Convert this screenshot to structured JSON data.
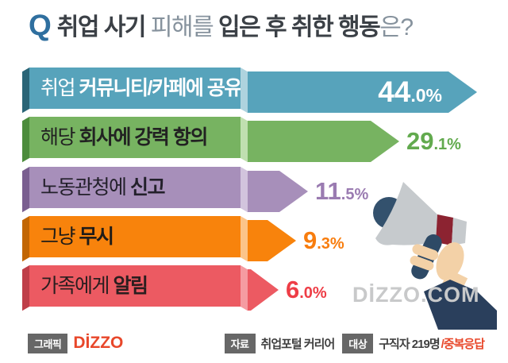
{
  "title": {
    "q": "Q",
    "seg1": "취업 사기",
    "seg2": " 피해를 ",
    "seg3": "입은 후 취한 행동",
    "seg4": "은?"
  },
  "chart_data": {
    "type": "bar",
    "orientation": "horizontal",
    "title": "취업 사기 피해를 입은 후 취한 행동은?",
    "categories": [
      "취업 커뮤니티/카페에 공유",
      "해당 회사에 강력 항의",
      "노동관청에 신고",
      "그냥 무시",
      "가족에게 알림"
    ],
    "values": [
      44.0,
      29.1,
      11.5,
      9.3,
      6.0
    ],
    "value_labels": [
      "44.0%",
      "29.1%",
      "11.5%",
      "9.3%",
      "6.0%"
    ],
    "unit": "%",
    "xlim": [
      0,
      47
    ],
    "grid": false,
    "legend": "none",
    "bar_colors": [
      "#57a3bb",
      "#77b361",
      "#a78fba",
      "#f8830c",
      "#ec5a62"
    ],
    "source": "취업포털 커리어",
    "sample": "구직자 219명",
    "note": "중복응답"
  },
  "bars": [
    {
      "label_normal": "취업 ",
      "label_bold": "커뮤니티/카페에 공유",
      "value": 44.0,
      "value_int": "44",
      "value_dec": ".0%",
      "inside": true,
      "colors": {
        "main": "#57a3bb",
        "dark": "#2a6577",
        "light": "#aed3de",
        "label_text": "#ffffff",
        "pct_text": "#ffffff"
      }
    },
    {
      "label_normal": "해당 ",
      "label_bold": "회사에 강력 항의",
      "value": 29.1,
      "value_int": "29",
      "value_dec": ".1%",
      "inside": false,
      "colors": {
        "main": "#77b361",
        "dark": "#4c8c3c",
        "light": "#c0dfb0",
        "label_text": "#222222",
        "pct_text": "#62aa4e"
      }
    },
    {
      "label_normal": "노동관청에 ",
      "label_bold": "신고",
      "value": 11.5,
      "value_int": "11",
      "value_dec": ".5%",
      "inside": false,
      "colors": {
        "main": "#a78fba",
        "dark": "#7a5f90",
        "light": "#d2c4dd",
        "label_text": "#23202b",
        "pct_text": "#9a7bb1"
      }
    },
    {
      "label_normal": "그냥 ",
      "label_bold": "무시",
      "value": 9.3,
      "value_int": "9",
      "value_dec": ".3%",
      "inside": false,
      "colors": {
        "main": "#f8830c",
        "dark": "#c26604",
        "light": "#fcc489",
        "label_text": "#201c18",
        "pct_text": "#f87d0e"
      }
    },
    {
      "label_normal": "가족에게 ",
      "label_bold": "알림",
      "value": 6.0,
      "value_int": "6",
      "value_dec": ".0%",
      "inside": false,
      "colors": {
        "main": "#ec5a62",
        "dark": "#bf3f49",
        "light": "#f59ba1",
        "label_text": "#2a1e1f",
        "pct_text": "#ee3d46"
      }
    }
  ],
  "illustration": {
    "name": "hand-holding-megaphone",
    "colors": {
      "cone": "#c6cacd",
      "circle": "#33516d",
      "band": "#8c2331",
      "handle": "#2e4a66",
      "skin": "#f3d1a7",
      "sleeve": "#2a3f5c"
    }
  },
  "watermark": "DİZZO.COM",
  "footer": {
    "graphic_label": "그래픽",
    "logo": "DİZZO",
    "logo_color": "#e8472a",
    "source_label": "자료",
    "source_text": "취업포털 커리어",
    "target_label": "대상",
    "target_text": "구직자 219명",
    "note_red": "/중복응답"
  }
}
